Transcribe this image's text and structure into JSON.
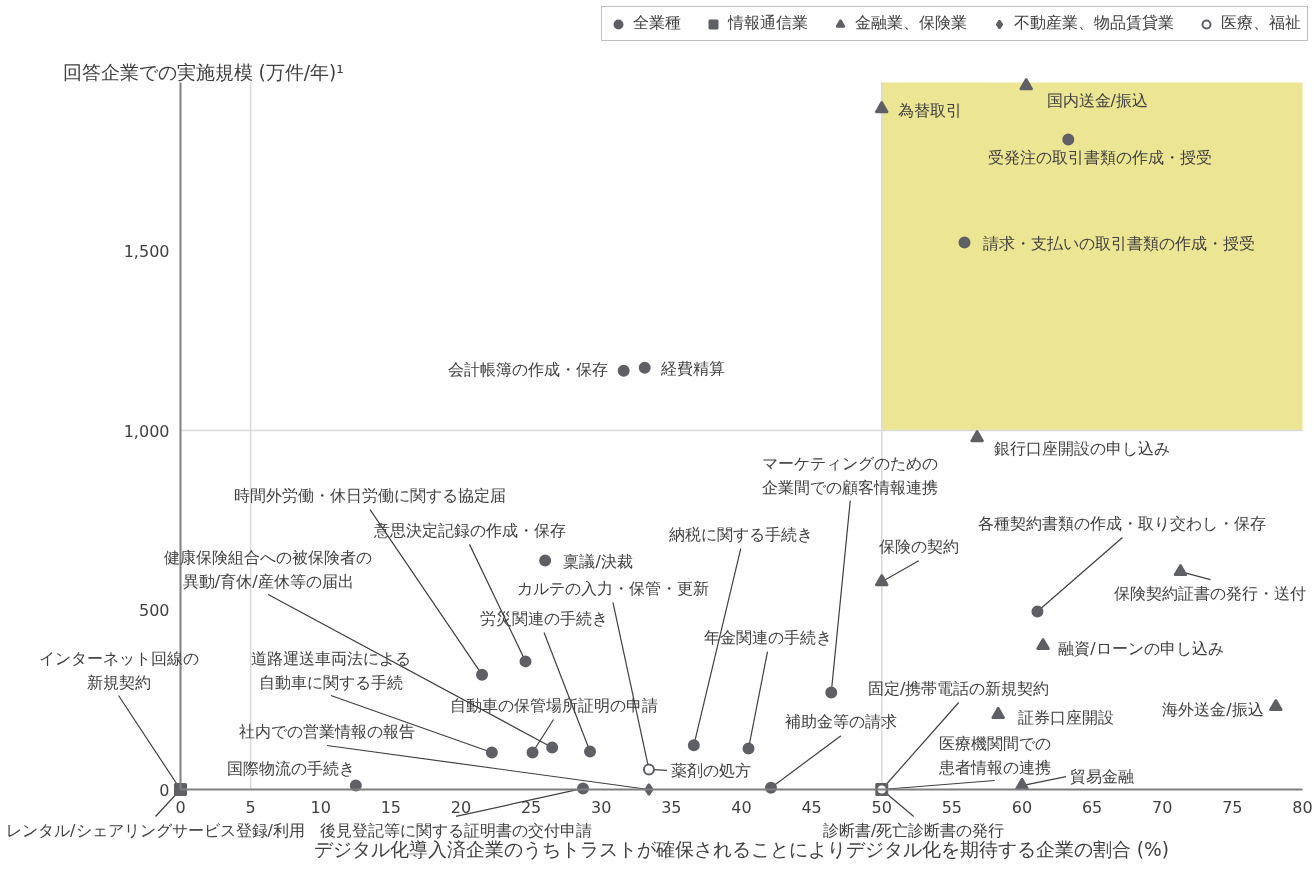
{
  "chart_data": {
    "type": "scatter",
    "ylabel": "回答企業での実施規模 (万件/年)¹",
    "xlabel": "デジタル化導入済企業のうちトラストが確保されることによりデジタル化を期待する企業の割合 (%)",
    "xlim": [
      0,
      80
    ],
    "ylim": [
      0,
      1970
    ],
    "xticks": [
      0,
      5,
      10,
      15,
      20,
      25,
      30,
      35,
      40,
      45,
      50,
      55,
      60,
      65,
      70,
      75,
      80
    ],
    "yticks": [
      0,
      500,
      {
        "value": 1000,
        "label": "1,000"
      },
      {
        "value": 1500,
        "label": "1,500"
      }
    ],
    "grid": false,
    "legend": "top",
    "ref_lines": [
      {
        "axis": "x",
        "value": 5,
        "color": "#d9d9d9"
      },
      {
        "axis": "x",
        "value": 50,
        "color": "#d9d9d9"
      },
      {
        "axis": "y",
        "value": 1000,
        "color": "#d9d9d9"
      }
    ],
    "bands": [
      {
        "axis": "x",
        "from": 50,
        "to": 80,
        "color": "#ece694"
      }
    ],
    "series": [
      {
        "name": "全業種",
        "color": "#5f6066",
        "marker": "circle",
        "x": [
          63.3,
          55.9,
          31.6,
          33.1,
          26.0,
          24.6,
          21.5,
          26.5,
          25.1,
          22.2,
          29.2,
          36.6,
          40.5,
          46.4,
          61.1,
          12.5,
          28.7,
          42.1
        ],
        "values": [
          1811,
          1524,
          1167,
          1175,
          638,
          357,
          320,
          117,
          103,
          103,
          106,
          123,
          114,
          270,
          496,
          11,
          3,
          5
        ]
      },
      {
        "name": "情報通信業",
        "color": "#5f6066",
        "marker": "square",
        "x": [
          0,
          50
        ],
        "values": [
          0,
          0
        ]
      },
      {
        "name": "金融業、保険業",
        "color": "#5f6066",
        "marker": "triangle",
        "x": [
          50,
          60.3,
          56.8,
          50,
          71.3,
          61.5,
          58.3,
          78.1,
          60
        ],
        "values": [
          1897,
          1961,
          980,
          579,
          607,
          401,
          209,
          231,
          11
        ]
      },
      {
        "name": "不動産業、物品賃貸業",
        "color": "#5f6066",
        "marker": "diamond",
        "x": [
          33.4
        ],
        "values": [
          0
        ]
      },
      {
        "name": "医療、福祉",
        "color": "#ffffff",
        "marker": "circle",
        "x": [
          33.4,
          50
        ],
        "values": [
          56,
          0
        ]
      }
    ],
    "annotations": [
      {
        "text": "為替取引",
        "x": 50,
        "y": 1897
      },
      {
        "text": "国内送金/振込",
        "x": 60.3,
        "y": 1961
      },
      {
        "text": "受発注の取引書類の作成・授受",
        "x": 63.3,
        "y": 1811
      },
      {
        "text": "請求・支払いの取引書類の作成・授受",
        "x": 55.9,
        "y": 1524
      },
      {
        "text": "会計帳簿の作成・保存",
        "x": 31.6,
        "y": 1167
      },
      {
        "text": "経費精算",
        "x": 33.1,
        "y": 1175
      },
      {
        "text": "銀行口座開設の申し込み",
        "x": 56.8,
        "y": 980
      },
      {
        "text": "マーケティングのための企業間での顧客情報連携",
        "x": 46.4,
        "y": 270
      },
      {
        "text": "保険の契約",
        "x": 50,
        "y": 579
      },
      {
        "text": "各種契約書類の作成・取り交わし・保存",
        "x": 61.1,
        "y": 496
      },
      {
        "text": "保険契約証書の発行・送付",
        "x": 71.3,
        "y": 607
      },
      {
        "text": "融資/ローンの申し込み",
        "x": 61.5,
        "y": 401
      },
      {
        "text": "証券口座開設",
        "x": 58.3,
        "y": 209
      },
      {
        "text": "海外送金/振込",
        "x": 78.1,
        "y": 231
      },
      {
        "text": "貿易金融",
        "x": 60,
        "y": 11
      },
      {
        "text": "医療機関間での患者情報の連携",
        "x": 50,
        "y": 0
      },
      {
        "text": "固定/携帯電話の新規契約",
        "x": 50,
        "y": 0
      },
      {
        "text": "診断書/死亡診断書の発行",
        "x": 50,
        "y": 0
      },
      {
        "text": "補助金等の請求",
        "x": 42.1,
        "y": 5
      },
      {
        "text": "年金関連の手続き",
        "x": 40.5,
        "y": 114
      },
      {
        "text": "納税に関する手続き",
        "x": 36.6,
        "y": 123
      },
      {
        "text": "薬剤の処方",
        "x": 33.4,
        "y": 56
      },
      {
        "text": "カルテの入力・保管・更新",
        "x": 33.4,
        "y": 56
      },
      {
        "text": "稟議/決裁",
        "x": 26.0,
        "y": 638
      },
      {
        "text": "労災関連の手続き",
        "x": 29.2,
        "y": 106
      },
      {
        "text": "意思決定記録の作成・保存",
        "x": 24.6,
        "y": 357
      },
      {
        "text": "時間外労働・休日労働に関する協定届",
        "x": 21.5,
        "y": 320
      },
      {
        "text": "健康保険組合への被保険者の異動/育休/産休等の届出",
        "x": 26.5,
        "y": 117
      },
      {
        "text": "自動車の保管場所証明の申請",
        "x": 25.1,
        "y": 103
      },
      {
        "text": "道路運送車両法による自動車に関する手続",
        "x": 22.2,
        "y": 103
      },
      {
        "text": "社内での営業情報の報告",
        "x": 33.4,
        "y": 0
      },
      {
        "text": "国際物流の手続き",
        "x": 12.5,
        "y": 11
      },
      {
        "text": "後見登記等に関する証明書の交付申請",
        "x": 28.7,
        "y": 3
      },
      {
        "text": "インターネット回線の新規契約",
        "x": 0,
        "y": 0
      },
      {
        "text": "レンタル/シェアリングサービス登録/利用",
        "x": 0,
        "y": 0
      }
    ]
  }
}
